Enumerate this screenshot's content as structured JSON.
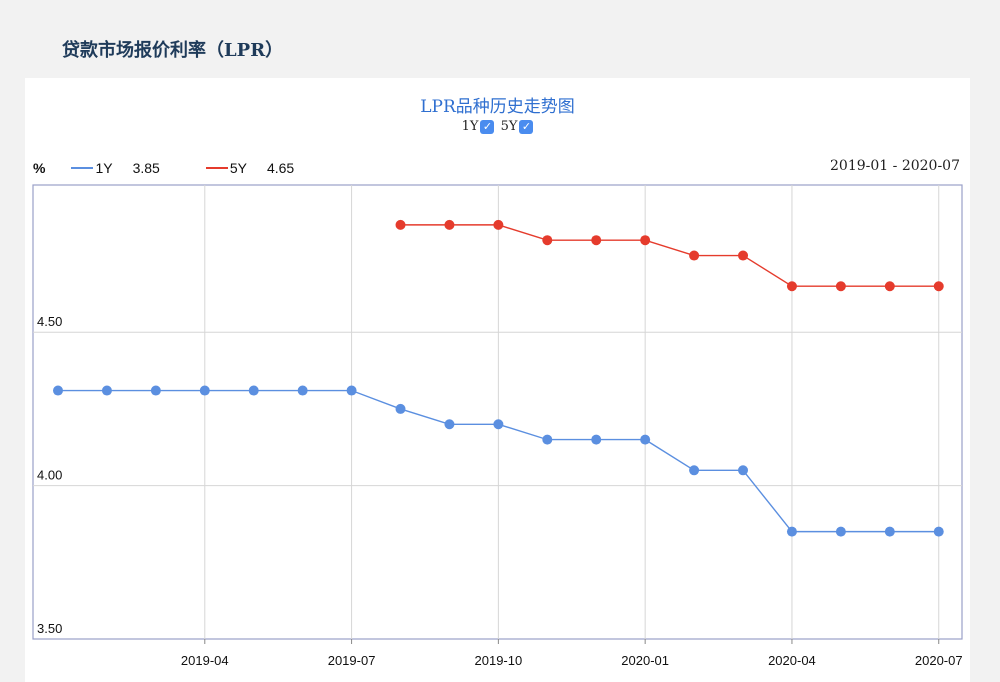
{
  "page": {
    "title": "贷款市场报价利率（LPR）"
  },
  "chart_data": {
    "type": "line",
    "title": "LPR品种历史走势图",
    "unit": "%",
    "date_range": "2019-01 - 2020-07",
    "toggles": [
      {
        "label": "1Y",
        "checked": true
      },
      {
        "label": "5Y",
        "checked": true
      }
    ],
    "legend": [
      {
        "name": "1Y",
        "value": "3.85",
        "color": "#5b8fe0"
      },
      {
        "name": "5Y",
        "value": "4.65",
        "color": "#e53b2c"
      }
    ],
    "x_ticks": [
      "2019-04",
      "2019-07",
      "2019-10",
      "2020-01",
      "2020-04",
      "2020-07"
    ],
    "y_ticks": [
      "3.50",
      "4.00",
      "4.50"
    ],
    "ylim": [
      3.5,
      4.98
    ],
    "x": [
      "2019-01",
      "2019-02",
      "2019-03",
      "2019-04",
      "2019-05",
      "2019-06",
      "2019-07",
      "2019-08",
      "2019-09",
      "2019-10",
      "2019-11",
      "2019-12",
      "2020-01",
      "2020-02",
      "2020-03",
      "2020-04",
      "2020-05",
      "2020-06",
      "2020-07"
    ],
    "series": [
      {
        "name": "1Y",
        "color": "#5b8fe0",
        "values": [
          4.31,
          4.31,
          4.31,
          4.31,
          4.31,
          4.31,
          4.31,
          4.25,
          4.2,
          4.2,
          4.15,
          4.15,
          4.15,
          4.05,
          4.05,
          3.85,
          3.85,
          3.85,
          3.85
        ]
      },
      {
        "name": "5Y",
        "color": "#e53b2c",
        "values": [
          null,
          null,
          null,
          null,
          null,
          null,
          null,
          4.85,
          4.85,
          4.85,
          4.8,
          4.8,
          4.8,
          4.75,
          4.75,
          4.65,
          4.65,
          4.65,
          4.65
        ]
      }
    ],
    "grid": true
  }
}
